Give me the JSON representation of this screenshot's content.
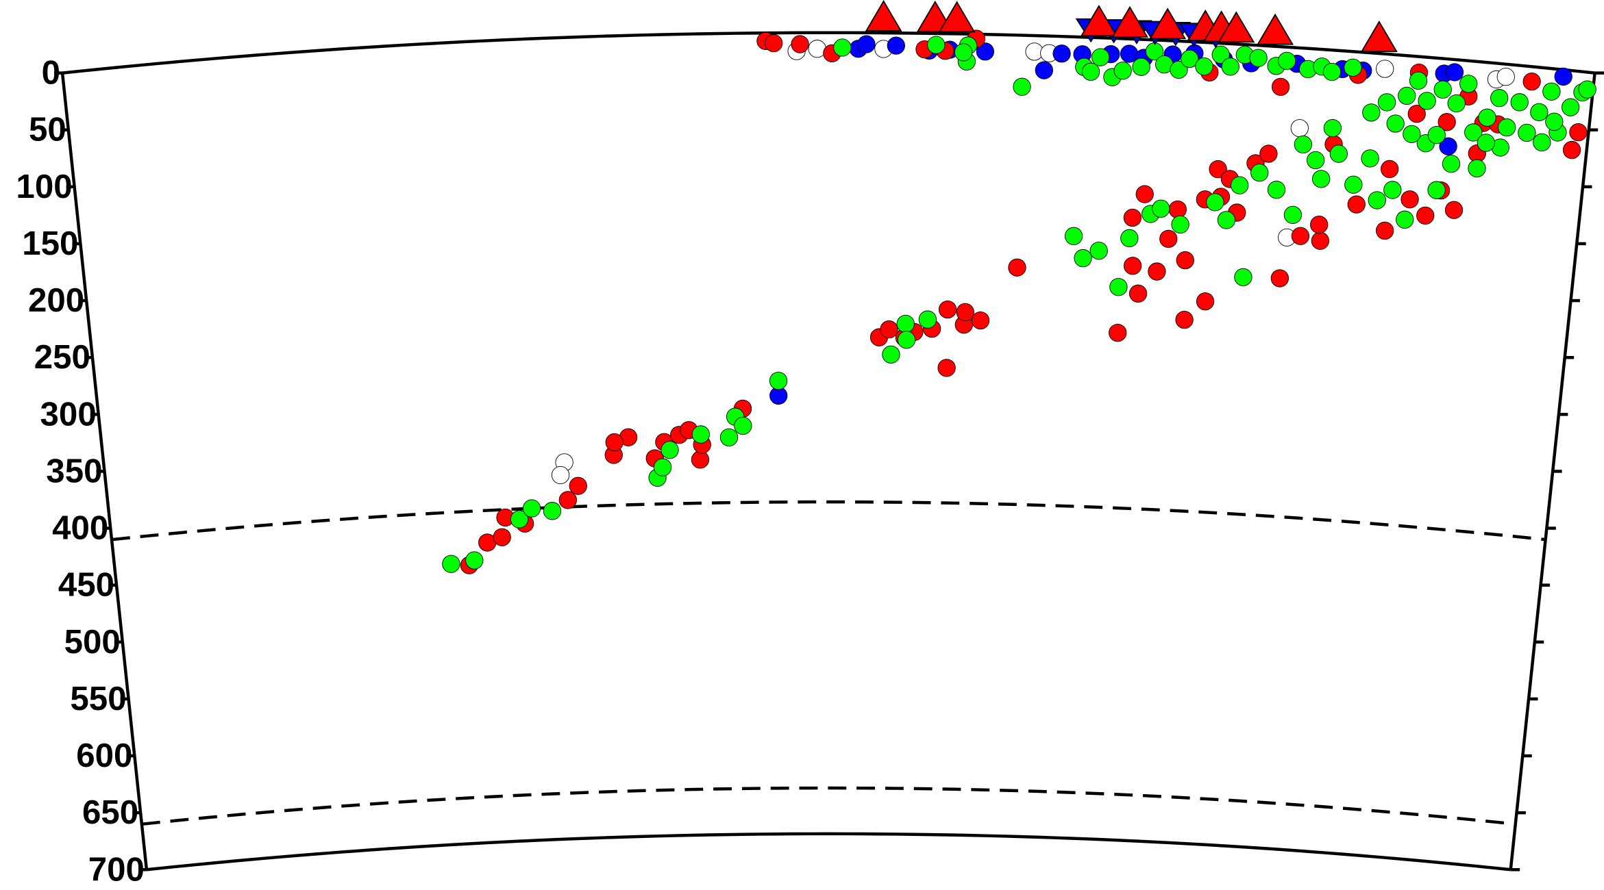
{
  "chart_data": {
    "type": "scatter",
    "ylim": [
      0,
      700
    ],
    "yticks": [
      0,
      50,
      100,
      150,
      200,
      250,
      300,
      350,
      400,
      450,
      500,
      550,
      600,
      650,
      700
    ],
    "xlim": [
      0,
      1340
    ],
    "discontinuity_depths": [
      410,
      660
    ],
    "series": [
      {
        "color": "#ffffff",
        "marker": "circle",
        "x": [
          425,
          421,
          1081,
          1086,
          1157,
          1255,
          1263,
          642,
          660,
          718,
          850,
          863
        ],
        "values": [
          371,
          382,
          166,
          70,
          13,
          14,
          11,
          16,
          14,
          14,
          14,
          15
        ]
      },
      {
        "color": "#0000ff",
        "marker": "circle",
        "x": [
          624,
          1209,
          1218,
          1313,
          1218,
          696,
          703,
          729,
          758,
          776,
          807,
          859,
          874,
          892,
          917,
          933,
          946,
          971,
          990,
          1016,
          1040,
          1080,
          1120,
          1138
        ],
        "values": [
          317,
          13,
          11,
          6,
          76,
          14,
          10,
          11,
          15,
          14,
          15,
          30,
          15,
          15,
          14,
          13,
          16,
          12,
          10,
          14,
          16,
          14,
          16,
          16
        ]
      },
      {
        "color": "#ff0000",
        "marker": "circle",
        "x": [
          332,
          350,
          364,
          368,
          386,
          427,
          437,
          471,
          485,
          472,
          509,
          518,
          532,
          541,
          551,
          553,
          591,
          716,
          725,
          739,
          748,
          764,
          778,
          778,
          793,
          808,
          794,
          840,
          933,
          952,
          950,
          944,
          966,
          991,
          975,
          942,
          982,
          1011,
          993,
          1006,
          1020,
          1035,
          1016,
          1027,
          1049,
          1060,
          1077,
          1093,
          1111,
          1109,
          1117,
          1141,
          1168,
          1168,
          1188,
          1203,
          1215,
          1228,
          1244,
          1247,
          1188,
          1187,
          1232,
          1286,
          1331,
          1327,
          1260,
          1215,
          615,
          622,
          645,
          673,
          754,
          772,
          799,
          1004,
          1067,
          1134
        ],
        "values": [
          457,
          438,
          434,
          417,
          423,
          404,
          392,
          366,
          351,
          355,
          370,
          356,
          350,
          346,
          372,
          359,
          328,
          266,
          259,
          266,
          261,
          258,
          241,
          292,
          254,
          250,
          243,
          203,
          257,
          135,
          222,
          198,
          202,
          191,
          173,
          156,
          147,
          226,
          243,
          137,
          134,
          147,
          110,
          118,
          103,
          94,
          202,
          164,
          167,
          153,
          82,
          133,
          154,
          100,
          125,
          138,
          115,
          131,
          80,
          53,
          50,
          14,
          31,
          13,
          53,
          69,
          53,
          55,
          7,
          9,
          10,
          18,
          14,
          15,
          4,
          26,
          35,
          20
        ]
      },
      {
        "color": "#00ff00",
        "marker": "circle",
        "x": [
          315,
          337,
          381,
          393,
          412,
          511,
          516,
          523,
          552,
          578,
          584,
          591,
          624,
          727,
          740,
          741,
          760,
          899,
          890,
          913,
          932,
          940,
          958,
          967,
          985,
          1015,
          1026,
          1044,
          1036,
          1053,
          1069,
          1085,
          1090,
          1102,
          1108,
          1115,
          1122,
          1137,
          1150,
          1159,
          1172,
          1185,
          1211,
          1198,
          1222,
          1245,
          1185,
          1148,
          1161,
          1178,
          1187,
          1196,
          1209,
          1222,
          1231,
          1250,
          1259,
          1268,
          1277,
          1286,
          1295,
          1304,
          1313,
          1322,
          1331,
          1335,
          1170,
          1207,
          1239,
          1264,
          1300,
          1309,
          1251,
          682,
          764,
          792,
          791,
          788,
          840,
          894,
          900,
          908,
          919,
          928,
          944,
          955,
          964,
          977,
          986,
          999,
          1013,
          1022,
          1034,
          1046,
          1062,
          1071,
          1090,
          1102,
          1111,
          1129
        ],
        "values": [
          455,
          453,
          419,
          410,
          413,
          387,
          378,
          363,
          350,
          353,
          335,
          343,
          304,
          281,
          254,
          268,
          250,
          193,
          174,
          186,
          217,
          174,
          152,
          147,
          160,
          139,
          154,
          203,
          123,
          111,
          125,
          146,
          84,
          97,
          113,
          68,
          90,
          116,
          92,
          128,
          118,
          143,
          115,
          75,
          91,
          93,
          68,
          52,
          42,
          35,
          21,
          38,
          27,
          38,
          20,
          48,
          30,
          55,
          32,
          58,
          39,
          20,
          55,
          32,
          18,
          15,
          60,
          67,
          62,
          73,
          65,
          46,
          70,
          13,
          10,
          10,
          24,
          16,
          45,
          26,
          30,
          17,
          34,
          28,
          24,
          10,
          21,
          25,
          15,
          21,
          10,
          20,
          9,
          11,
          17,
          12,
          18,
          15,
          19,
          14
        ]
      },
      {
        "color": "#0000ff",
        "marker": "triangle-down",
        "x": [
          899,
          919,
          939,
          955,
          973,
          989,
          1008
        ],
        "values": [
          0,
          0,
          0,
          0,
          0,
          0,
          0
        ]
      },
      {
        "color": "#ff0000",
        "marker": "triangle",
        "x": [
          718,
          763,
          782,
          906,
          933,
          966,
          999,
          1013,
          1026,
          1060,
          1151
        ],
        "values": [
          0,
          0,
          0,
          0,
          0,
          0,
          0,
          0,
          0,
          0,
          0
        ]
      }
    ]
  }
}
